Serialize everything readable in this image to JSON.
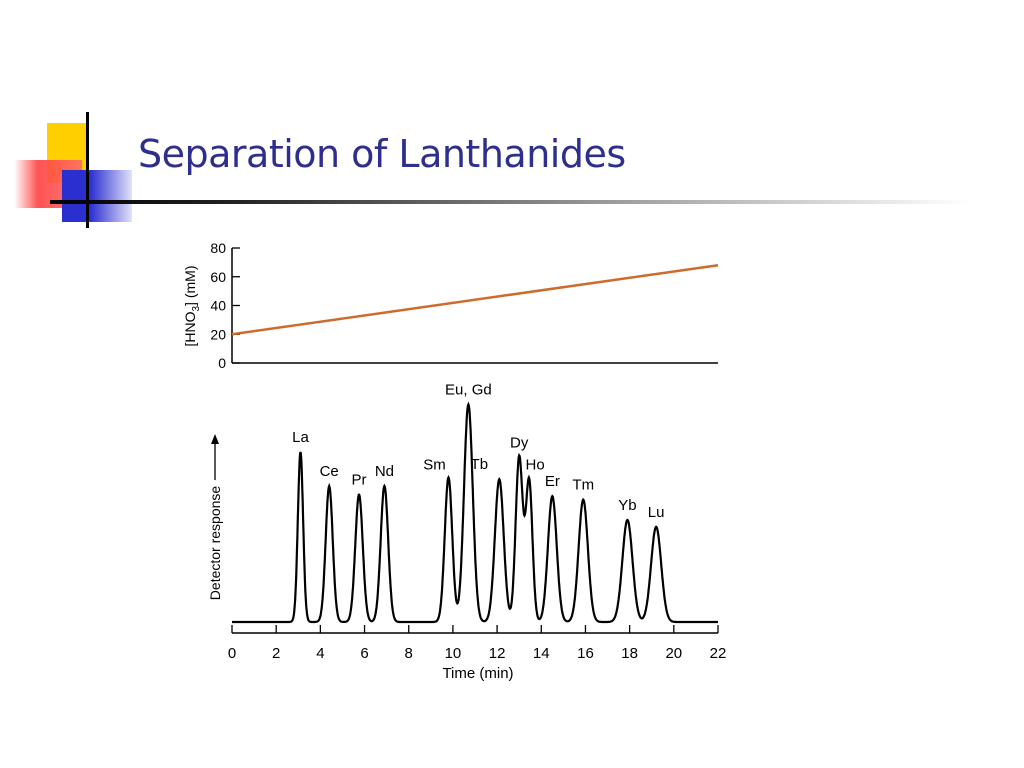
{
  "slide": {
    "title": "Separation of Lanthanides"
  },
  "chart_data": [
    {
      "type": "line",
      "ylabel": "[HNO3] (mM)",
      "ylabel_main": "[HNO",
      "ylabel_sub": "3",
      "ylabel_tail": "] (mM)",
      "ylim": [
        0,
        80
      ],
      "yticks": [
        "0",
        "20",
        "40",
        "60",
        "80"
      ],
      "xlim": [
        0,
        22
      ],
      "color": "#d06a2c",
      "series": [
        {
          "x": [
            0,
            22
          ],
          "y": [
            20,
            68
          ]
        }
      ]
    },
    {
      "type": "line",
      "xlabel": "Time (min)",
      "ylabel": "Detector response",
      "xlim": [
        0,
        22
      ],
      "xticks": [
        "0",
        "2",
        "4",
        "6",
        "8",
        "10",
        "12",
        "14",
        "16",
        "18",
        "20",
        "22"
      ],
      "baseline": 0.02,
      "peaks": [
        {
          "label": "La",
          "time": 3.1,
          "height": 1.0
        },
        {
          "label": "Ce",
          "time": 4.4,
          "height": 0.8
        },
        {
          "label": "Pr",
          "time": 5.75,
          "height": 0.75
        },
        {
          "label": "Nd",
          "time": 6.9,
          "height": 0.8
        },
        {
          "label": "Sm",
          "time": 9.8,
          "height": 0.85
        },
        {
          "label": "Eu, Gd",
          "time": 10.7,
          "height": 1.28
        },
        {
          "label": "Tb",
          "time": 12.1,
          "height": 0.84
        },
        {
          "label": "Dy",
          "time": 13.0,
          "height": 0.97
        },
        {
          "label": "Ho",
          "time": 13.45,
          "height": 0.83
        },
        {
          "label": "Er",
          "time": 14.5,
          "height": 0.74
        },
        {
          "label": "Tm",
          "time": 15.9,
          "height": 0.72
        },
        {
          "label": "Yb",
          "time": 17.9,
          "height": 0.6
        },
        {
          "label": "Lu",
          "time": 19.2,
          "height": 0.56
        }
      ]
    }
  ]
}
